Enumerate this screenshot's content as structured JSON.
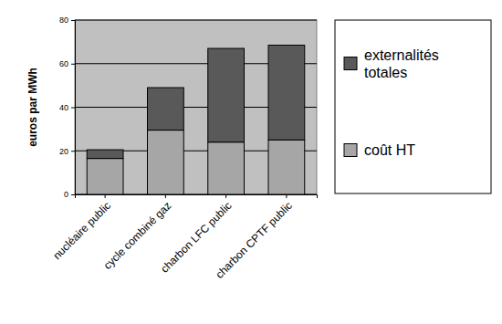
{
  "chart_data": {
    "type": "bar",
    "stacked": true,
    "grid": true,
    "legend": "right",
    "y_label": "euros par MWh",
    "categories": [
      "nucléaire public",
      "cycle combiné gaz",
      "charbon LFC public",
      "charbon CPTF public"
    ],
    "series": [
      {
        "name": "coût HT",
        "color": "#a6a6a6",
        "values": [
          16.5,
          29.5,
          24,
          25
        ]
      },
      {
        "name": "externalités totales",
        "color": "#595959",
        "values": [
          4,
          19.5,
          43,
          43.5
        ]
      }
    ],
    "ylim": [
      0,
      80
    ],
    "yticks": [
      0,
      20,
      40,
      60,
      80
    ]
  }
}
